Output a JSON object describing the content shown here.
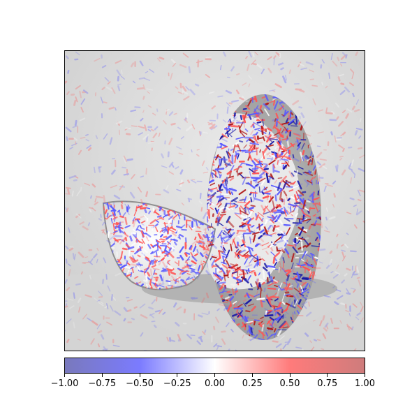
{
  "figure": {
    "description_colors": {
      "negative": "#4040ff",
      "neutral": "#ffffff",
      "positive": "#ff4040"
    },
    "colorbar": {
      "colormap": "bwr",
      "vmin": -1.0,
      "vmax": 1.0,
      "ticks": [
        {
          "value": -1.0,
          "label": "−1.00"
        },
        {
          "value": -0.75,
          "label": "−0.75"
        },
        {
          "value": -0.5,
          "label": "−0.50"
        },
        {
          "value": -0.25,
          "label": "−0.25"
        },
        {
          "value": 0.0,
          "label": "0.00"
        },
        {
          "value": 0.25,
          "label": "0.25"
        },
        {
          "value": 0.5,
          "label": "0.50"
        },
        {
          "value": 0.75,
          "label": "0.75"
        },
        {
          "value": 1.0,
          "label": "1.00"
        }
      ]
    }
  }
}
